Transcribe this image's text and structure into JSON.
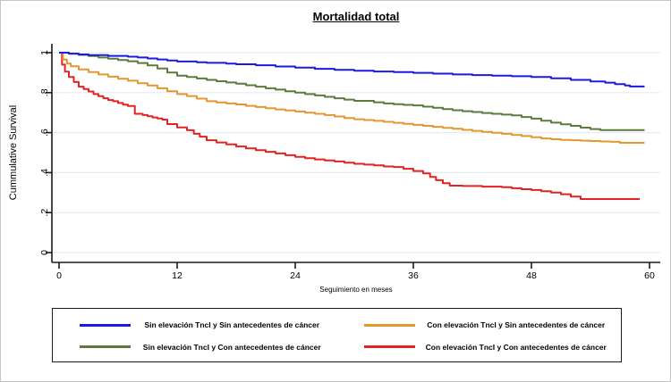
{
  "chart_data": {
    "type": "line",
    "subtype": "kaplan-meier-step",
    "title": "Mortalidad total",
    "xlabel": "Seguimiento en meses",
    "ylabel": "Cummulative Survival",
    "xlim": [
      0,
      60
    ],
    "ylim": [
      0,
      1
    ],
    "x_ticks": [
      0,
      12,
      24,
      36,
      48,
      60
    ],
    "y_ticks": [
      0,
      0.2,
      0.4,
      0.6,
      0.8,
      1
    ],
    "y_tick_labels": [
      "0",
      ".2",
      ".4",
      ".6",
      ".8",
      "1"
    ],
    "grid": "horizontal",
    "colors": {
      "gridline": "#e3ecf4",
      "axis": "#1a1a1a",
      "background": "#ffffff"
    },
    "legend_position": "bottom-box",
    "series": [
      {
        "name": "Sin elevación TncI y Sin antecedentes de cáncer",
        "color": "#1b1be0",
        "points": [
          [
            0,
            1
          ],
          [
            1,
            0.995
          ],
          [
            2,
            0.991
          ],
          [
            3,
            0.988
          ],
          [
            5,
            0.984
          ],
          [
            7,
            0.98
          ],
          [
            8,
            0.976
          ],
          [
            9,
            0.971
          ],
          [
            10,
            0.966
          ],
          [
            11,
            0.961
          ],
          [
            12,
            0.956
          ],
          [
            14,
            0.952
          ],
          [
            15,
            0.949
          ],
          [
            17,
            0.945
          ],
          [
            18,
            0.942
          ],
          [
            20,
            0.937
          ],
          [
            22,
            0.931
          ],
          [
            24,
            0.925
          ],
          [
            26,
            0.919
          ],
          [
            28,
            0.914
          ],
          [
            30,
            0.91
          ],
          [
            32,
            0.906
          ],
          [
            34,
            0.903
          ],
          [
            36,
            0.899
          ],
          [
            38,
            0.895
          ],
          [
            40,
            0.891
          ],
          [
            42,
            0.888
          ],
          [
            44,
            0.885
          ],
          [
            46,
            0.882
          ],
          [
            48,
            0.878
          ],
          [
            50,
            0.872
          ],
          [
            52,
            0.864
          ],
          [
            54,
            0.856
          ],
          [
            55.5,
            0.85
          ],
          [
            56.5,
            0.843
          ],
          [
            57.5,
            0.836
          ],
          [
            58,
            0.831
          ],
          [
            59.5,
            0.831
          ]
        ]
      },
      {
        "name": "Sin elevación TncI y Con antecedentes de cáncer",
        "color": "#5b7a3c",
        "points": [
          [
            0,
            1
          ],
          [
            1,
            0.995
          ],
          [
            2,
            0.989
          ],
          [
            3,
            0.983
          ],
          [
            4,
            0.976
          ],
          [
            5,
            0.97
          ],
          [
            6,
            0.963
          ],
          [
            7,
            0.957
          ],
          [
            8,
            0.948
          ],
          [
            9,
            0.936
          ],
          [
            10,
            0.921
          ],
          [
            11,
            0.901
          ],
          [
            12,
            0.885
          ],
          [
            13,
            0.878
          ],
          [
            14,
            0.871
          ],
          [
            15,
            0.864
          ],
          [
            16,
            0.857
          ],
          [
            17,
            0.851
          ],
          [
            18,
            0.845
          ],
          [
            19,
            0.837
          ],
          [
            20,
            0.83
          ],
          [
            21,
            0.822
          ],
          [
            22,
            0.815
          ],
          [
            23,
            0.807
          ],
          [
            24,
            0.8
          ],
          [
            25,
            0.793
          ],
          [
            26,
            0.786
          ],
          [
            27,
            0.779
          ],
          [
            28,
            0.772
          ],
          [
            29,
            0.765
          ],
          [
            30,
            0.759
          ],
          [
            32,
            0.752
          ],
          [
            33,
            0.746
          ],
          [
            34,
            0.742
          ],
          [
            35,
            0.739
          ],
          [
            36,
            0.736
          ],
          [
            37,
            0.73
          ],
          [
            38,
            0.724
          ],
          [
            39,
            0.718
          ],
          [
            40,
            0.712
          ],
          [
            41,
            0.707
          ],
          [
            42,
            0.703
          ],
          [
            43,
            0.698
          ],
          [
            44,
            0.694
          ],
          [
            45,
            0.69
          ],
          [
            46,
            0.686
          ],
          [
            47,
            0.678
          ],
          [
            48,
            0.67
          ],
          [
            49,
            0.66
          ],
          [
            50,
            0.65
          ],
          [
            51,
            0.642
          ],
          [
            52,
            0.634
          ],
          [
            53,
            0.625
          ],
          [
            54,
            0.618
          ],
          [
            55,
            0.613
          ],
          [
            59.5,
            0.613
          ]
        ]
      },
      {
        "name": "Con elevación TncI y Sin antecedentes de cáncer",
        "color": "#e5972f",
        "points": [
          [
            0,
            1
          ],
          [
            0.4,
            0.965
          ],
          [
            0.8,
            0.945
          ],
          [
            1.2,
            0.932
          ],
          [
            2,
            0.916
          ],
          [
            3,
            0.903
          ],
          [
            4,
            0.891
          ],
          [
            5,
            0.88
          ],
          [
            6,
            0.869
          ],
          [
            7,
            0.86
          ],
          [
            8,
            0.847
          ],
          [
            9,
            0.836
          ],
          [
            10,
            0.822
          ],
          [
            11,
            0.807
          ],
          [
            12,
            0.793
          ],
          [
            13,
            0.783
          ],
          [
            14,
            0.77
          ],
          [
            15,
            0.757
          ],
          [
            16,
            0.751
          ],
          [
            17,
            0.746
          ],
          [
            18,
            0.741
          ],
          [
            19,
            0.734
          ],
          [
            20,
            0.728
          ],
          [
            21,
            0.722
          ],
          [
            22,
            0.716
          ],
          [
            23,
            0.711
          ],
          [
            24,
            0.706
          ],
          [
            25,
            0.7
          ],
          [
            26,
            0.694
          ],
          [
            27,
            0.688
          ],
          [
            28,
            0.681
          ],
          [
            29,
            0.673
          ],
          [
            30,
            0.667
          ],
          [
            31,
            0.663
          ],
          [
            32,
            0.659
          ],
          [
            33,
            0.654
          ],
          [
            34,
            0.649
          ],
          [
            35,
            0.644
          ],
          [
            36,
            0.639
          ],
          [
            37,
            0.634
          ],
          [
            38,
            0.629
          ],
          [
            39,
            0.624
          ],
          [
            40,
            0.619
          ],
          [
            41,
            0.614
          ],
          [
            42,
            0.609
          ],
          [
            43,
            0.604
          ],
          [
            44,
            0.599
          ],
          [
            45,
            0.594
          ],
          [
            46,
            0.589
          ],
          [
            47,
            0.583
          ],
          [
            48,
            0.577
          ],
          [
            49,
            0.571
          ],
          [
            50,
            0.567
          ],
          [
            51,
            0.564
          ],
          [
            52,
            0.562
          ],
          [
            53,
            0.56
          ],
          [
            54,
            0.558
          ],
          [
            55,
            0.556
          ],
          [
            56,
            0.554
          ],
          [
            57,
            0.549
          ],
          [
            59.5,
            0.549
          ]
        ]
      },
      {
        "name": "Con elevación TncI y Con antecedentes de cáncer",
        "color": "#e52222",
        "points": [
          [
            0,
            1
          ],
          [
            0.3,
            0.94
          ],
          [
            0.6,
            0.905
          ],
          [
            1,
            0.878
          ],
          [
            1.5,
            0.853
          ],
          [
            2,
            0.83
          ],
          [
            2.5,
            0.818
          ],
          [
            3,
            0.806
          ],
          [
            3.5,
            0.793
          ],
          [
            4,
            0.782
          ],
          [
            4.5,
            0.772
          ],
          [
            5,
            0.763
          ],
          [
            5.5,
            0.757
          ],
          [
            6,
            0.748
          ],
          [
            6.5,
            0.74
          ],
          [
            7,
            0.733
          ],
          [
            7.7,
            0.694
          ],
          [
            8.5,
            0.688
          ],
          [
            9,
            0.682
          ],
          [
            9.5,
            0.676
          ],
          [
            10,
            0.671
          ],
          [
            10.5,
            0.665
          ],
          [
            11,
            0.643
          ],
          [
            12,
            0.626
          ],
          [
            13,
            0.612
          ],
          [
            13.7,
            0.594
          ],
          [
            14.3,
            0.58
          ],
          [
            15,
            0.562
          ],
          [
            16,
            0.551
          ],
          [
            17,
            0.541
          ],
          [
            18,
            0.531
          ],
          [
            19,
            0.521
          ],
          [
            20,
            0.512
          ],
          [
            21,
            0.504
          ],
          [
            22,
            0.496
          ],
          [
            23,
            0.487
          ],
          [
            24,
            0.479
          ],
          [
            25,
            0.472
          ],
          [
            26,
            0.466
          ],
          [
            27,
            0.461
          ],
          [
            28,
            0.456
          ],
          [
            29,
            0.45
          ],
          [
            30,
            0.444
          ],
          [
            31,
            0.44
          ],
          [
            32,
            0.436
          ],
          [
            33,
            0.431
          ],
          [
            34,
            0.428
          ],
          [
            35,
            0.419
          ],
          [
            36,
            0.408
          ],
          [
            37,
            0.396
          ],
          [
            37.7,
            0.378
          ],
          [
            38.3,
            0.362
          ],
          [
            39,
            0.347
          ],
          [
            39.7,
            0.335
          ],
          [
            41,
            0.333
          ],
          [
            43,
            0.33
          ],
          [
            45,
            0.327
          ],
          [
            46,
            0.322
          ],
          [
            47,
            0.317
          ],
          [
            48,
            0.313
          ],
          [
            49,
            0.307
          ],
          [
            50,
            0.3
          ],
          [
            51,
            0.292
          ],
          [
            52,
            0.28
          ],
          [
            53,
            0.268
          ],
          [
            59,
            0.268
          ]
        ]
      }
    ]
  },
  "legend": {
    "entries_order_note": "column-flow: blue, green (left col); orange, red (right col)"
  }
}
